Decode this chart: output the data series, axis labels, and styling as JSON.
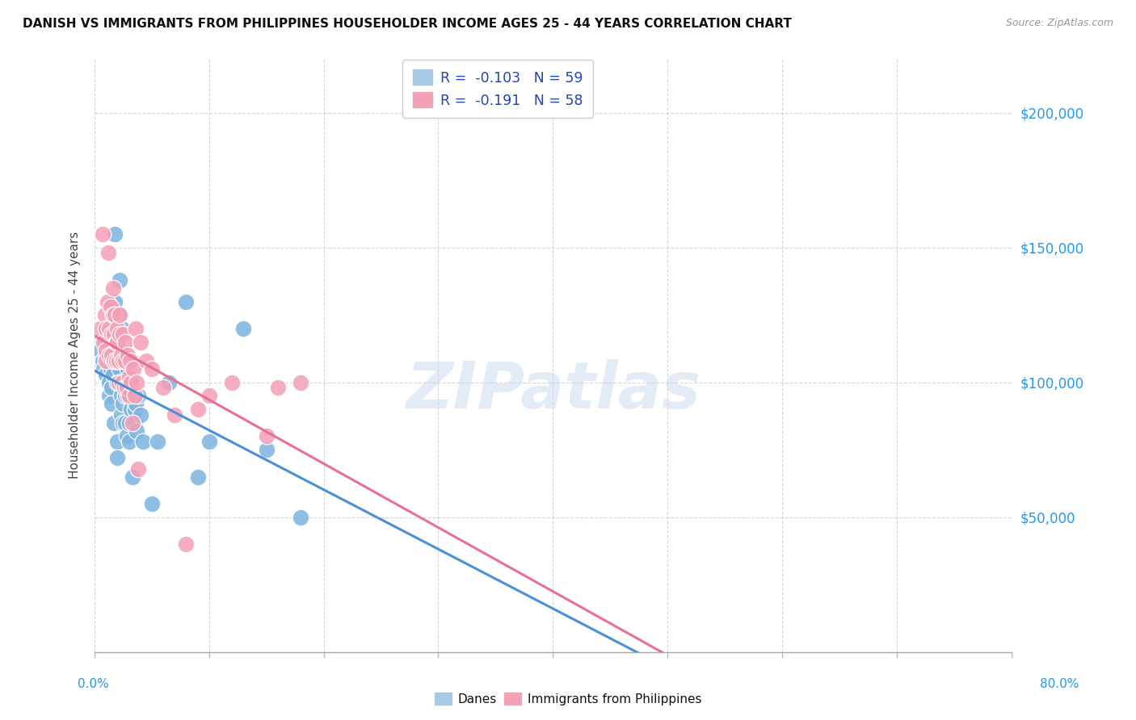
{
  "title": "DANISH VS IMMIGRANTS FROM PHILIPPINES HOUSEHOLDER INCOME AGES 25 - 44 YEARS CORRELATION CHART",
  "source": "Source: ZipAtlas.com",
  "ylabel": "Householder Income Ages 25 - 44 years",
  "watermark": "ZIPatlas",
  "legend_entries": [
    {
      "label": "R =  -0.103   N = 59",
      "color": "#a8c4e0"
    },
    {
      "label": "R =  -0.191   N = 58",
      "color": "#f4a0b5"
    }
  ],
  "ytick_labels": [
    "",
    "$50,000",
    "$100,000",
    "$150,000",
    "$200,000"
  ],
  "ytick_vals": [
    0,
    50000,
    100000,
    150000,
    200000
  ],
  "xlim": [
    0,
    0.8
  ],
  "ylim": [
    0,
    220000
  ],
  "danes_color": "#7db4e0",
  "philippines_color": "#f4a0b5",
  "line_danes_color": "#4a90d9",
  "line_phil_color": "#e87090",
  "danes_scatter": [
    [
      0.005,
      112000
    ],
    [
      0.007,
      108000
    ],
    [
      0.008,
      105000
    ],
    [
      0.009,
      115000
    ],
    [
      0.01,
      110000
    ],
    [
      0.01,
      103000
    ],
    [
      0.011,
      118000
    ],
    [
      0.012,
      108000
    ],
    [
      0.013,
      100000
    ],
    [
      0.013,
      95000
    ],
    [
      0.014,
      105000
    ],
    [
      0.015,
      98000
    ],
    [
      0.015,
      92000
    ],
    [
      0.016,
      110000
    ],
    [
      0.016,
      103000
    ],
    [
      0.017,
      85000
    ],
    [
      0.018,
      155000
    ],
    [
      0.018,
      130000
    ],
    [
      0.019,
      108000
    ],
    [
      0.02,
      100000
    ],
    [
      0.02,
      78000
    ],
    [
      0.02,
      72000
    ],
    [
      0.021,
      125000
    ],
    [
      0.022,
      138000
    ],
    [
      0.022,
      105000
    ],
    [
      0.023,
      95000
    ],
    [
      0.023,
      88000
    ],
    [
      0.024,
      120000
    ],
    [
      0.025,
      100000
    ],
    [
      0.025,
      92000
    ],
    [
      0.025,
      85000
    ],
    [
      0.026,
      110000
    ],
    [
      0.027,
      95000
    ],
    [
      0.027,
      85000
    ],
    [
      0.028,
      80000
    ],
    [
      0.029,
      105000
    ],
    [
      0.029,
      95000
    ],
    [
      0.03,
      85000
    ],
    [
      0.03,
      78000
    ],
    [
      0.031,
      100000
    ],
    [
      0.032,
      90000
    ],
    [
      0.033,
      65000
    ],
    [
      0.034,
      98000
    ],
    [
      0.035,
      90000
    ],
    [
      0.035,
      85000
    ],
    [
      0.036,
      92000
    ],
    [
      0.037,
      82000
    ],
    [
      0.038,
      95000
    ],
    [
      0.04,
      88000
    ],
    [
      0.042,
      78000
    ],
    [
      0.05,
      55000
    ],
    [
      0.055,
      78000
    ],
    [
      0.065,
      100000
    ],
    [
      0.08,
      130000
    ],
    [
      0.09,
      65000
    ],
    [
      0.1,
      78000
    ],
    [
      0.13,
      120000
    ],
    [
      0.15,
      75000
    ],
    [
      0.18,
      50000
    ]
  ],
  "philippines_scatter": [
    [
      0.005,
      120000
    ],
    [
      0.007,
      155000
    ],
    [
      0.008,
      115000
    ],
    [
      0.009,
      125000
    ],
    [
      0.01,
      120000
    ],
    [
      0.01,
      112000
    ],
    [
      0.01,
      108000
    ],
    [
      0.011,
      130000
    ],
    [
      0.012,
      148000
    ],
    [
      0.013,
      120000
    ],
    [
      0.013,
      110000
    ],
    [
      0.014,
      128000
    ],
    [
      0.015,
      118000
    ],
    [
      0.015,
      110000
    ],
    [
      0.016,
      135000
    ],
    [
      0.016,
      125000
    ],
    [
      0.017,
      118000
    ],
    [
      0.017,
      108000
    ],
    [
      0.018,
      125000
    ],
    [
      0.019,
      115000
    ],
    [
      0.019,
      108000
    ],
    [
      0.02,
      120000
    ],
    [
      0.02,
      115000
    ],
    [
      0.021,
      108000
    ],
    [
      0.021,
      100000
    ],
    [
      0.022,
      125000
    ],
    [
      0.022,
      118000
    ],
    [
      0.023,
      110000
    ],
    [
      0.024,
      100000
    ],
    [
      0.025,
      118000
    ],
    [
      0.025,
      108000
    ],
    [
      0.026,
      98000
    ],
    [
      0.027,
      115000
    ],
    [
      0.027,
      108000
    ],
    [
      0.028,
      98000
    ],
    [
      0.029,
      110000
    ],
    [
      0.03,
      102000
    ],
    [
      0.03,
      95000
    ],
    [
      0.031,
      108000
    ],
    [
      0.032,
      100000
    ],
    [
      0.033,
      85000
    ],
    [
      0.034,
      105000
    ],
    [
      0.035,
      95000
    ],
    [
      0.036,
      120000
    ],
    [
      0.037,
      100000
    ],
    [
      0.038,
      68000
    ],
    [
      0.04,
      115000
    ],
    [
      0.045,
      108000
    ],
    [
      0.05,
      105000
    ],
    [
      0.06,
      98000
    ],
    [
      0.07,
      88000
    ],
    [
      0.08,
      40000
    ],
    [
      0.09,
      90000
    ],
    [
      0.1,
      95000
    ],
    [
      0.12,
      100000
    ],
    [
      0.15,
      80000
    ],
    [
      0.16,
      98000
    ],
    [
      0.18,
      100000
    ]
  ]
}
